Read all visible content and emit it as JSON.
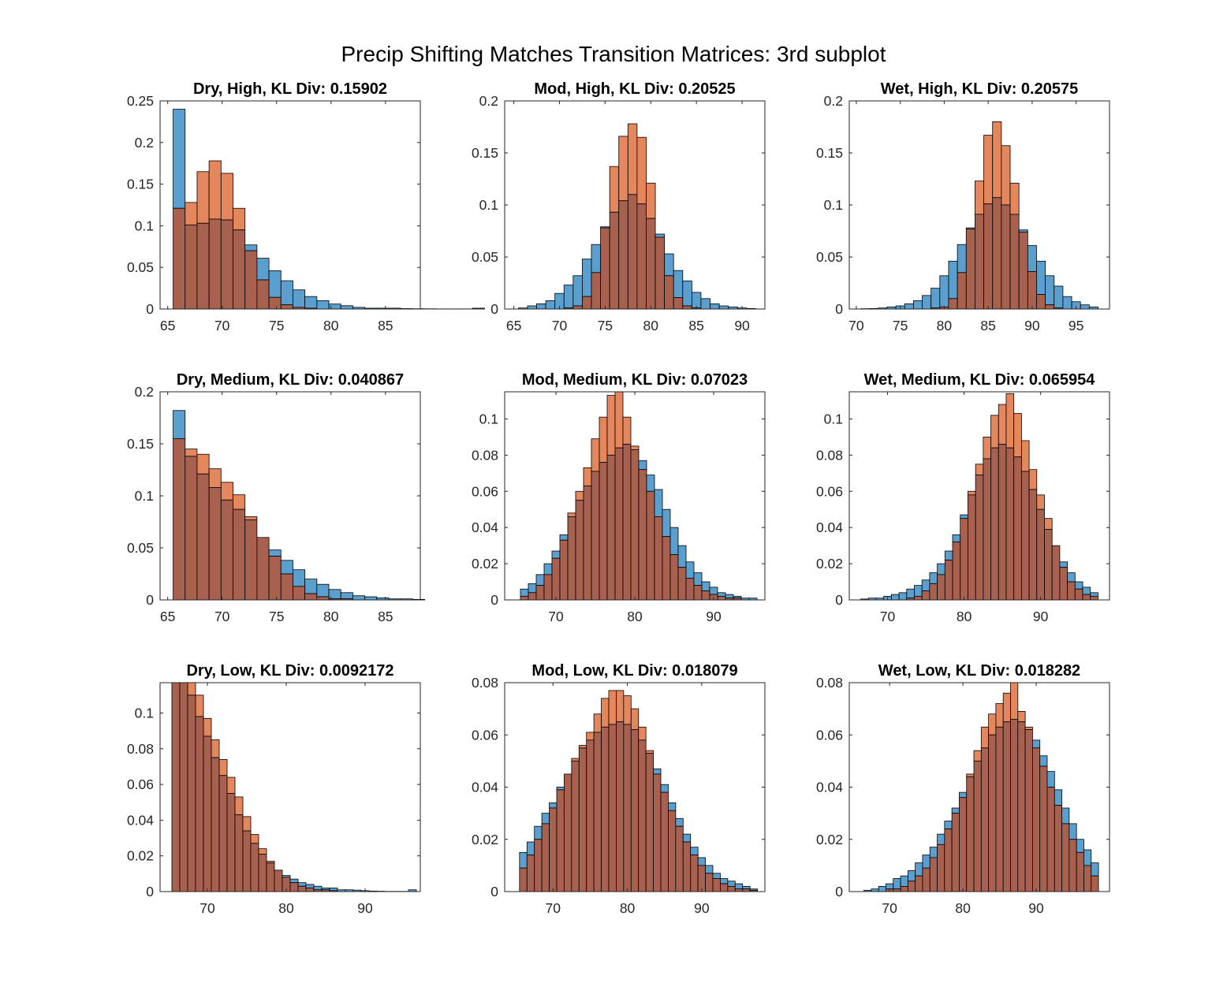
{
  "figure_title": "Precip Shifting Matches Transition Matrices: 3rd subplot",
  "colors": {
    "series_a": "#5b9fcf",
    "series_b": "#e5875d",
    "overlap": "#a8604f",
    "axis": "#262626",
    "edge": "#000000"
  },
  "chart_data": [
    {
      "type": "bar",
      "title": "Dry, High, KL Div: 0.15902",
      "xlim": [
        64.3,
        88.2
      ],
      "ylim": [
        0,
        0.25
      ],
      "xticks": [
        65,
        70,
        75,
        80,
        85
      ],
      "yticks": [
        0,
        0.05,
        0.1,
        0.15,
        0.2,
        0.25
      ],
      "bins": {
        "start": 65.5,
        "width": 1.1
      },
      "series": [
        {
          "values": [
            0.24,
            0.101,
            0.103,
            0.108,
            0.107,
            0.095,
            0.077,
            0.061,
            0.046,
            0.034,
            0.023,
            0.015,
            0.01,
            0.006,
            0.004,
            0.002,
            0.001,
            0.001,
            0.001,
            0.0005,
            0.0003,
            0.0002,
            0.0001,
            0.0001,
            0.0001,
            0.001
          ]
        },
        {
          "values": [
            0.121,
            0.128,
            0.165,
            0.178,
            0.163,
            0.121,
            0.07,
            0.035,
            0.014,
            0.005,
            0.002,
            0.001,
            0,
            0,
            0,
            0,
            0,
            0,
            0,
            0,
            0,
            0,
            0,
            0,
            0,
            0
          ]
        }
      ]
    },
    {
      "type": "bar",
      "title": "Mod, High, KL Div: 0.20525",
      "xlim": [
        64.0,
        92.5
      ],
      "ylim": [
        0,
        0.2
      ],
      "xticks": [
        65,
        70,
        75,
        80,
        85,
        90
      ],
      "yticks": [
        0,
        0.05,
        0.1,
        0.15,
        0.2
      ],
      "bins": {
        "start": 65.5,
        "width": 1.0
      },
      "series": [
        {
          "values": [
            0.001,
            0.003,
            0.005,
            0.008,
            0.015,
            0.023,
            0.032,
            0.048,
            0.062,
            0.079,
            0.093,
            0.104,
            0.11,
            0.101,
            0.087,
            0.072,
            0.053,
            0.037,
            0.027,
            0.016,
            0.01,
            0.005,
            0.003,
            0.002,
            0.001,
            0.0005
          ]
        },
        {
          "values": [
            0,
            0,
            0,
            0,
            0,
            0.001,
            0.003,
            0.012,
            0.035,
            0.078,
            0.137,
            0.166,
            0.178,
            0.165,
            0.121,
            0.069,
            0.032,
            0.011,
            0.003,
            0.001,
            0,
            0,
            0,
            0,
            0,
            0
          ]
        }
      ]
    },
    {
      "type": "bar",
      "title": "Wet, High, KL Div: 0.20575",
      "xlim": [
        69.2,
        98.8
      ],
      "ylim": [
        0,
        0.2
      ],
      "xticks": [
        70,
        75,
        80,
        85,
        90,
        95
      ],
      "yticks": [
        0,
        0.05,
        0.1,
        0.15,
        0.2
      ],
      "bins": {
        "start": 70.5,
        "width": 1.0
      },
      "series": [
        {
          "values": [
            0.0003,
            0.0005,
            0.001,
            0.002,
            0.003,
            0.005,
            0.008,
            0.013,
            0.02,
            0.032,
            0.046,
            0.062,
            0.078,
            0.091,
            0.101,
            0.107,
            0.1,
            0.091,
            0.076,
            0.061,
            0.046,
            0.032,
            0.022,
            0.012,
            0.007,
            0.004,
            0.002
          ]
        },
        {
          "values": [
            0,
            0,
            0,
            0,
            0,
            0,
            0,
            0,
            0.001,
            0.002,
            0.01,
            0.035,
            0.077,
            0.123,
            0.167,
            0.18,
            0.157,
            0.121,
            0.074,
            0.036,
            0.014,
            0.004,
            0.001,
            0,
            0,
            0,
            0
          ]
        }
      ]
    },
    {
      "type": "bar",
      "title": "Dry, Medium, KL Div: 0.040867",
      "xlim": [
        64.3,
        88.2
      ],
      "ylim": [
        0,
        0.2
      ],
      "xticks": [
        65,
        70,
        75,
        80,
        85
      ],
      "yticks": [
        0,
        0.05,
        0.1,
        0.15,
        0.2
      ],
      "bins": {
        "start": 65.5,
        "width": 1.1
      },
      "series": [
        {
          "values": [
            0.182,
            0.138,
            0.121,
            0.108,
            0.096,
            0.087,
            0.077,
            0.06,
            0.048,
            0.038,
            0.029,
            0.02,
            0.015,
            0.01,
            0.007,
            0.004,
            0.003,
            0.002,
            0.001,
            0.001,
            0.0005
          ]
        },
        {
          "values": [
            0.155,
            0.145,
            0.14,
            0.126,
            0.113,
            0.101,
            0.08,
            0.06,
            0.042,
            0.025,
            0.013,
            0.006,
            0.003,
            0.001,
            0.001,
            0,
            0,
            0,
            0,
            0,
            0
          ]
        }
      ]
    },
    {
      "type": "bar",
      "title": "Mod, Medium, KL Div: 0.07023",
      "xlim": [
        63.5,
        96.5
      ],
      "ylim": [
        0,
        0.115
      ],
      "xticks": [
        70,
        80,
        90
      ],
      "yticks": [
        0,
        0.02,
        0.04,
        0.06,
        0.08,
        0.1
      ],
      "bins": {
        "start": 65.5,
        "width": 1.0
      },
      "series": [
        {
          "values": [
            0.006,
            0.009,
            0.014,
            0.02,
            0.027,
            0.036,
            0.046,
            0.055,
            0.063,
            0.071,
            0.076,
            0.08,
            0.084,
            0.086,
            0.083,
            0.077,
            0.069,
            0.061,
            0.05,
            0.04,
            0.03,
            0.021,
            0.015,
            0.01,
            0.007,
            0.004,
            0.003,
            0.002,
            0.001,
            0.001
          ]
        },
        {
          "values": [
            0.002,
            0.004,
            0.008,
            0.014,
            0.023,
            0.033,
            0.048,
            0.06,
            0.073,
            0.089,
            0.101,
            0.113,
            0.115,
            0.101,
            0.085,
            0.072,
            0.06,
            0.046,
            0.035,
            0.025,
            0.018,
            0.012,
            0.008,
            0.005,
            0.003,
            0.002,
            0.001,
            0.001,
            0,
            0
          ]
        }
      ]
    },
    {
      "type": "bar",
      "title": "Wet, Medium, KL Div: 0.065954",
      "xlim": [
        65.0,
        99.0
      ],
      "ylim": [
        0,
        0.115
      ],
      "xticks": [
        70,
        80,
        90
      ],
      "yticks": [
        0,
        0.02,
        0.04,
        0.06,
        0.08,
        0.1
      ],
      "bins": {
        "start": 66.5,
        "width": 1.0
      },
      "series": [
        {
          "values": [
            0.0005,
            0.001,
            0.001,
            0.002,
            0.003,
            0.004,
            0.006,
            0.008,
            0.011,
            0.015,
            0.02,
            0.027,
            0.036,
            0.047,
            0.058,
            0.069,
            0.078,
            0.084,
            0.086,
            0.084,
            0.079,
            0.071,
            0.061,
            0.05,
            0.039,
            0.03,
            0.021,
            0.015,
            0.01,
            0.007,
            0.004
          ]
        },
        {
          "values": [
            0,
            0,
            0,
            0,
            0,
            0,
            0.001,
            0.002,
            0.005,
            0.009,
            0.014,
            0.022,
            0.032,
            0.045,
            0.06,
            0.075,
            0.09,
            0.102,
            0.108,
            0.114,
            0.103,
            0.088,
            0.072,
            0.058,
            0.045,
            0.03,
            0.018,
            0.01,
            0.006,
            0.003,
            0.002
          ]
        }
      ]
    },
    {
      "type": "bar",
      "title": "Dry, Low, KL Div: 0.0092172",
      "xlim": [
        64.0,
        97.0
      ],
      "ylim": [
        0,
        0.117
      ],
      "xticks": [
        70,
        80,
        90
      ],
      "yticks": [
        0,
        0.02,
        0.04,
        0.06,
        0.08,
        0.1
      ],
      "bins": {
        "start": 65.5,
        "width": 1.0
      },
      "series": [
        {
          "values": [
            0.117,
            0.117,
            0.11,
            0.098,
            0.087,
            0.075,
            0.065,
            0.055,
            0.043,
            0.034,
            0.027,
            0.021,
            0.016,
            0.012,
            0.009,
            0.007,
            0.005,
            0.004,
            0.003,
            0.002,
            0.002,
            0.001,
            0.001,
            0.0008,
            0.0005,
            0.0003,
            0.0002,
            0.0001,
            0.0001,
            0.0001,
            0.001
          ]
        },
        {
          "values": [
            0.117,
            0.117,
            0.117,
            0.11,
            0.097,
            0.085,
            0.074,
            0.064,
            0.053,
            0.042,
            0.032,
            0.024,
            0.017,
            0.012,
            0.008,
            0.005,
            0.003,
            0.002,
            0.001,
            0.001,
            0.0005,
            0,
            0,
            0,
            0,
            0,
            0,
            0,
            0,
            0,
            0
          ]
        }
      ]
    },
    {
      "type": "bar",
      "title": "Mod, Low, KL Div: 0.018079",
      "xlim": [
        63.5,
        98.5
      ],
      "ylim": [
        0,
        0.08
      ],
      "xticks": [
        70,
        80,
        90
      ],
      "yticks": [
        0,
        0.02,
        0.04,
        0.06,
        0.08
      ],
      "bins": {
        "start": 65.5,
        "width": 1.0
      },
      "series": [
        {
          "values": [
            0.015,
            0.019,
            0.025,
            0.03,
            0.034,
            0.04,
            0.045,
            0.05,
            0.055,
            0.058,
            0.061,
            0.063,
            0.064,
            0.065,
            0.064,
            0.062,
            0.058,
            0.053,
            0.047,
            0.041,
            0.034,
            0.028,
            0.022,
            0.017,
            0.013,
            0.01,
            0.007,
            0.005,
            0.004,
            0.003,
            0.002,
            0.001
          ]
        },
        {
          "values": [
            0.009,
            0.014,
            0.02,
            0.026,
            0.032,
            0.039,
            0.045,
            0.051,
            0.056,
            0.061,
            0.068,
            0.074,
            0.077,
            0.077,
            0.075,
            0.07,
            0.063,
            0.054,
            0.045,
            0.038,
            0.031,
            0.025,
            0.019,
            0.014,
            0.01,
            0.007,
            0.005,
            0.003,
            0.002,
            0.001,
            0.001,
            0.0005
          ]
        }
      ]
    },
    {
      "type": "bar",
      "title": "Wet, Low, KL Div: 0.018282",
      "xlim": [
        64.5,
        100.0
      ],
      "ylim": [
        0,
        0.08
      ],
      "xticks": [
        70,
        80,
        90
      ],
      "yticks": [
        0,
        0.02,
        0.04,
        0.06,
        0.08
      ],
      "bins": {
        "start": 66.5,
        "width": 1.0
      },
      "series": [
        {
          "values": [
            0.0005,
            0.001,
            0.002,
            0.003,
            0.005,
            0.006,
            0.008,
            0.011,
            0.014,
            0.017,
            0.022,
            0.027,
            0.032,
            0.038,
            0.044,
            0.05,
            0.055,
            0.06,
            0.063,
            0.065,
            0.066,
            0.065,
            0.062,
            0.058,
            0.052,
            0.046,
            0.039,
            0.032,
            0.026,
            0.02,
            0.016,
            0.011
          ]
        },
        {
          "values": [
            0,
            0,
            0,
            0.001,
            0.001,
            0.002,
            0.004,
            0.006,
            0.009,
            0.013,
            0.018,
            0.024,
            0.03,
            0.036,
            0.045,
            0.054,
            0.063,
            0.068,
            0.072,
            0.076,
            0.08,
            0.069,
            0.063,
            0.055,
            0.048,
            0.04,
            0.033,
            0.026,
            0.02,
            0.015,
            0.01,
            0.006
          ]
        }
      ]
    }
  ]
}
